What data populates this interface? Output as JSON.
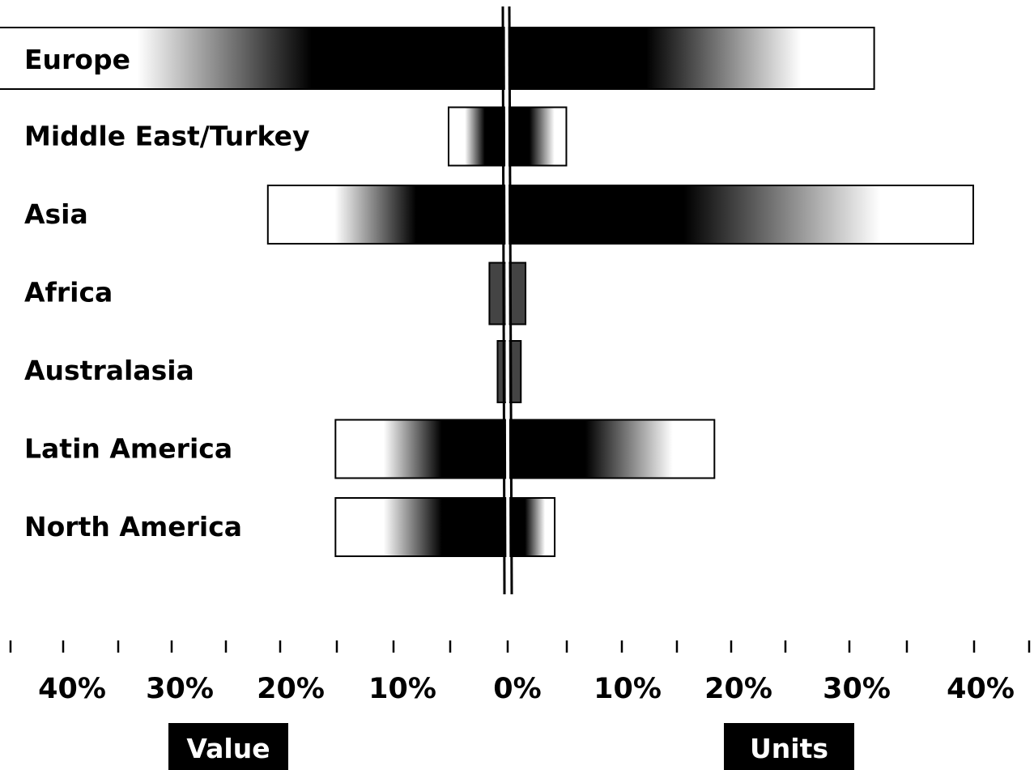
{
  "chart_data": {
    "type": "bar",
    "categories": [
      "Europe",
      "Middle East/Turkey",
      "Asia",
      "Africa",
      "Australasia",
      "Latin America",
      "North America"
    ],
    "series": [
      {
        "name": "Value",
        "values": [
          -44,
          -5,
          -20.5,
          -1.5,
          -0.8,
          -14.7,
          -14.7
        ]
      },
      {
        "name": "Units",
        "values": [
          31.5,
          5.1,
          40.0,
          1.6,
          1.2,
          17.8,
          4.1
        ]
      }
    ],
    "x_tick_labels": [
      "40%",
      "30%",
      "20%",
      "10%",
      "0%",
      "10%",
      "20%",
      "30%",
      "40%"
    ],
    "x_tick_values": [
      -40,
      -30,
      -20,
      -10,
      0,
      10,
      20,
      30,
      40
    ],
    "xlim": [
      -44,
      45
    ],
    "legend": [
      {
        "label": "Value",
        "side": "left"
      },
      {
        "label": "Units",
        "side": "right"
      }
    ],
    "colors": {
      "bar_core": "#000000",
      "bar_fade": "#ffffff",
      "outline": "#000000"
    },
    "grid": false
  }
}
